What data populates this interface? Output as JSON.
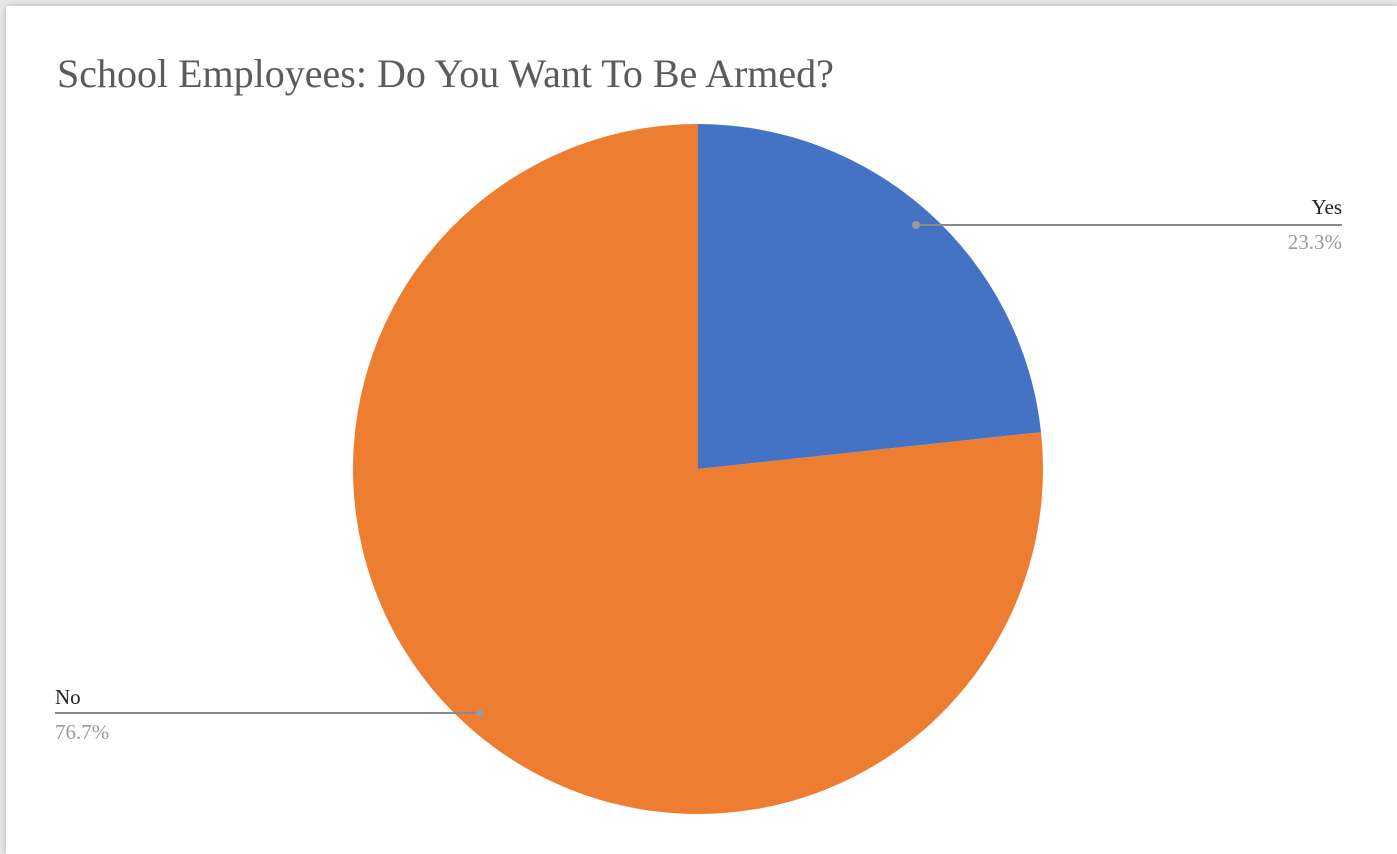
{
  "chart_data": {
    "type": "pie",
    "title": "School Employees: Do You Want To Be Armed?",
    "slices": [
      {
        "label": "Yes",
        "value": 23.3,
        "value_label": "23.3%",
        "color": "#4472c4"
      },
      {
        "label": "No",
        "value": 76.7,
        "value_label": "76.7%",
        "color": "#ed7d31"
      }
    ],
    "start_angle": "12 o'clock",
    "direction": "clockwise",
    "legend": "none",
    "data_labels": "outside with leader lines"
  },
  "colors": {
    "title": "#5b5b5b",
    "leader_line": "#8a8a8a",
    "label_name": "#222222",
    "label_pct": "#9a9a9a"
  }
}
